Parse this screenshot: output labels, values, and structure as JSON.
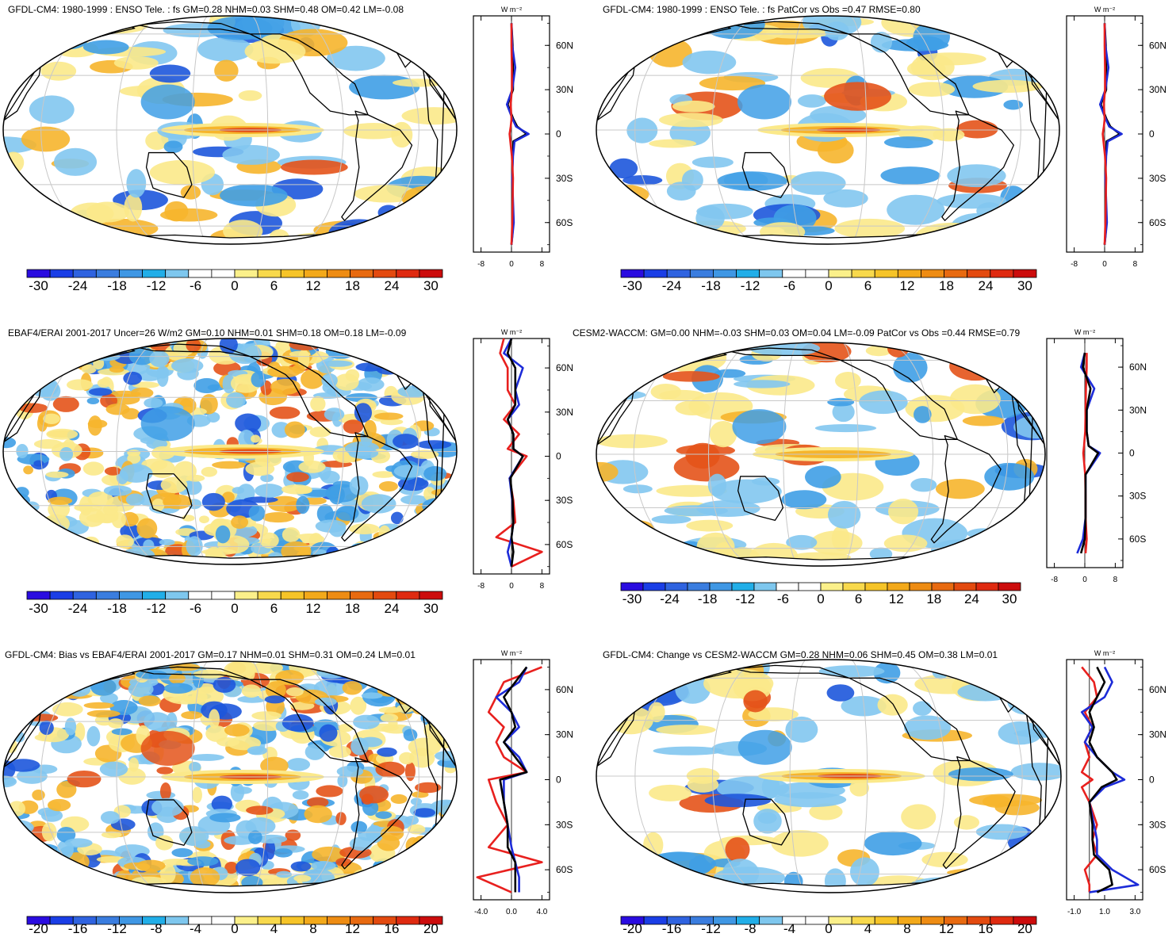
{
  "figure": {
    "panels": [
      {
        "id": "p1",
        "title": "GFDL-CM4: 1980-1999 : ENSO Tele. : fs GM=0.28 NHM=0.03 SHM=0.48 OM=0.42 LM=-0.08",
        "colorbar_labels": [
          "-30",
          "-24",
          "-18",
          "-12",
          "-6",
          "0",
          "6",
          "12",
          "18",
          "24",
          "30"
        ],
        "profile_ticks": [
          "-8",
          "0",
          "8"
        ],
        "lat_labels": [
          "60N",
          "30N",
          "0",
          "30S",
          "60S"
        ],
        "units": "W m⁻²"
      },
      {
        "id": "p2",
        "title": "GFDL-CM4: 1980-1999 : ENSO Tele. : fs PatCor vs Obs =0.47 RMSE=0.80",
        "colorbar_labels": [
          "-30",
          "-24",
          "-18",
          "-12",
          "-6",
          "0",
          "6",
          "12",
          "18",
          "24",
          "30"
        ],
        "profile_ticks": [
          "-8",
          "0",
          "8"
        ],
        "lat_labels": [
          "60N",
          "30N",
          "0",
          "30S",
          "60S"
        ],
        "units": "W m⁻²"
      },
      {
        "id": "p3",
        "title": "EBAF4/ERAI 2001-2017 Uncer=26 W/m2 GM=0.10 NHM=0.01 SHM=0.18 OM=0.18 LM=-0.09",
        "colorbar_labels": [
          "-30",
          "-24",
          "-18",
          "-12",
          "-6",
          "0",
          "6",
          "12",
          "18",
          "24",
          "30"
        ],
        "profile_ticks": [
          "-8",
          "0",
          "8"
        ],
        "lat_labels": [
          "60N",
          "30N",
          "0",
          "30S",
          "60S"
        ],
        "units": "W m⁻²"
      },
      {
        "id": "p4",
        "title": "CESM2-WACCM: GM=0.00 NHM=-0.03 SHM=0.03 OM=0.04 LM=-0.09 PatCor vs Obs =0.44 RMSE=0.79",
        "colorbar_labels": [
          "-30",
          "-24",
          "-18",
          "-12",
          "-6",
          "0",
          "6",
          "12",
          "18",
          "24",
          "30"
        ],
        "profile_ticks": [
          "-8",
          "0",
          "8"
        ],
        "lat_labels": [
          "60N",
          "30N",
          "0",
          "30S",
          "60S"
        ],
        "units": "W m⁻²"
      },
      {
        "id": "p5",
        "title": "GFDL-CM4: Bias vs EBAF4/ERAI 2001-2017 GM=0.17 NHM=0.01 SHM=0.31 OM=0.24 LM=0.01",
        "colorbar_labels": [
          "-20",
          "-16",
          "-12",
          "-8",
          "-4",
          "0",
          "4",
          "8",
          "12",
          "16",
          "20"
        ],
        "profile_ticks": [
          "-4.0",
          "0.0",
          "4.0"
        ],
        "lat_labels": [
          "60N",
          "30N",
          "0",
          "30S",
          "60S"
        ],
        "units": "W m⁻²"
      },
      {
        "id": "p6",
        "title": "GFDL-CM4: Change vs CESM2-WACCM GM=0.28 NHM=0.06 SHM=0.45 OM=0.38 LM=0.01",
        "colorbar_labels": [
          "-20",
          "-16",
          "-12",
          "-8",
          "-4",
          "0",
          "4",
          "8",
          "12",
          "16",
          "20"
        ],
        "profile_ticks": [
          "-1.0",
          "1.0",
          "3.0"
        ],
        "lat_labels": [
          "60N",
          "30N",
          "0",
          "30S",
          "60S"
        ],
        "units": "W m⁻²"
      }
    ]
  },
  "colors": {
    "colorbar": [
      "#2a0ce0",
      "#1a3ee6",
      "#2f63e0",
      "#3a7ddf",
      "#3f97e4",
      "#21aee8",
      "#7ec7ee",
      "#ffffff",
      "#ffffff",
      "#fbf08a",
      "#f8d94c",
      "#f6c428",
      "#f3a91a",
      "#ee8c13",
      "#e86a10",
      "#e34a0f",
      "#df2a10",
      "#cc0c0c"
    ],
    "neg_light": "#82c7ef",
    "neg_mid": "#3f9fe6",
    "neg_dark": "#1d56dc",
    "pos_light": "#fbe98a",
    "pos_mid": "#f6b52c",
    "pos_dark": "#e4531a",
    "profile_red": "#e8201e",
    "profile_blue": "#1c2bd8",
    "profile_black": "#000000"
  },
  "chart_data": [
    {
      "type": "heatmap",
      "panel": "p1",
      "title": "GFDL-CM4: 1980-1999 : ENSO Tele. : fs GM=0.28 NHM=0.03 SHM=0.48 OM=0.42 LM=-0.08",
      "colorbar": {
        "levels": [
          -30,
          -24,
          -18,
          -12,
          -6,
          0,
          6,
          12,
          18,
          24,
          30
        ]
      },
      "zonal_profile": {
        "xlim": [
          -10,
          10
        ],
        "x_ticks": [
          -8,
          0,
          8
        ],
        "ylim": [
          -80,
          80
        ],
        "lat": [
          -75,
          -60,
          -45,
          -30,
          -15,
          -5,
          0,
          5,
          10,
          20,
          30,
          45,
          60,
          75
        ],
        "series": [
          {
            "name": "black",
            "values": [
              0,
              0.5,
              0.3,
              0.2,
              0.3,
              0.5,
              4,
              1.5,
              0.5,
              -1,
              0.4,
              0.4,
              0.3,
              0
            ]
          },
          {
            "name": "blue",
            "values": [
              0,
              0.6,
              0.4,
              0.2,
              0.4,
              0.8,
              4.5,
              1.2,
              0.3,
              -1.2,
              0.2,
              1.0,
              0.2,
              0
            ]
          },
          {
            "name": "red",
            "values": [
              0,
              0.2,
              0.3,
              0.4,
              0.1,
              -0.3,
              -0.5,
              -0.2,
              0.0,
              -0.2,
              0.1,
              0.1,
              0.0,
              0
            ]
          }
        ]
      }
    },
    {
      "type": "heatmap",
      "panel": "p2",
      "title": "GFDL-CM4: 1980-1999 : ENSO Tele. : fs PatCor vs Obs =0.47 RMSE=0.80",
      "colorbar": {
        "levels": [
          -30,
          -24,
          -18,
          -12,
          -6,
          0,
          6,
          12,
          18,
          24,
          30
        ]
      },
      "zonal_profile": {
        "xlim": [
          -10,
          10
        ],
        "x_ticks": [
          -8,
          0,
          8
        ],
        "ylim": [
          -80,
          80
        ],
        "lat": [
          -75,
          -60,
          -45,
          -30,
          -15,
          -5,
          0,
          5,
          10,
          20,
          30,
          45,
          60,
          75
        ],
        "series": [
          {
            "name": "black",
            "values": [
              0,
              0.5,
              0.3,
              0.2,
              0.3,
              0.5,
              4,
              1.5,
              0.5,
              -1,
              0.4,
              0.4,
              0.3,
              0
            ]
          },
          {
            "name": "blue",
            "values": [
              0,
              0.6,
              0.4,
              0.2,
              0.4,
              0.8,
              4.5,
              1.2,
              0.3,
              -1.2,
              0.2,
              1.0,
              0.2,
              0
            ]
          },
          {
            "name": "red",
            "values": [
              0,
              0.2,
              0.3,
              0.4,
              0.1,
              -0.3,
              -0.5,
              -0.2,
              0.0,
              -0.2,
              0.1,
              0.1,
              0.0,
              0
            ]
          }
        ]
      }
    },
    {
      "type": "heatmap",
      "panel": "p3",
      "title": "EBAF4/ERAI 2001-2017 Uncer=26 W/m2 GM=0.10 NHM=0.01 SHM=0.18 OM=0.18 LM=-0.09",
      "colorbar": {
        "levels": [
          -30,
          -24,
          -18,
          -12,
          -6,
          0,
          6,
          12,
          18,
          24,
          30
        ]
      },
      "zonal_profile": {
        "xlim": [
          -10,
          10
        ],
        "x_ticks": [
          -8,
          0,
          8
        ],
        "ylim": [
          -80,
          80
        ],
        "lat": [
          -75,
          -65,
          -55,
          -45,
          -30,
          -15,
          0,
          5,
          15,
          25,
          35,
          45,
          60,
          70,
          80
        ],
        "series": [
          {
            "name": "red",
            "values": [
              0,
              8,
              -4,
              1,
              0.5,
              -0.5,
              4,
              -1,
              2,
              -2,
              1,
              -1,
              -1,
              -3,
              -2
            ]
          },
          {
            "name": "blue",
            "values": [
              0,
              -1,
              0,
              0.5,
              0.2,
              -0.5,
              3,
              0.5,
              0.5,
              -1,
              2,
              1,
              3,
              -2,
              0
            ]
          },
          {
            "name": "black",
            "values": [
              0,
              0.5,
              0,
              0.5,
              0.3,
              -0.3,
              3,
              0.5,
              0.5,
              -1,
              1,
              1,
              1,
              -1,
              0
            ]
          }
        ]
      }
    },
    {
      "type": "heatmap",
      "panel": "p4",
      "title": "CESM2-WACCM: GM=0.00 NHM=-0.03 SHM=0.03 OM=0.04 LM=-0.09 PatCor vs Obs =0.44 RMSE=0.79",
      "colorbar": {
        "levels": [
          -30,
          -24,
          -18,
          -12,
          -6,
          0,
          6,
          12,
          18,
          24,
          30
        ]
      },
      "zonal_profile": {
        "xlim": [
          -10,
          10
        ],
        "x_ticks": [
          -8,
          0,
          8
        ],
        "ylim": [
          -80,
          80
        ],
        "lat": [
          -70,
          -60,
          -45,
          -30,
          -15,
          0,
          5,
          15,
          30,
          45,
          60,
          70
        ],
        "series": [
          {
            "name": "blue",
            "values": [
              -2,
              -0.5,
              0.2,
              0.2,
              0.2,
              4,
              1,
              0.5,
              0.5,
              2.5,
              -1,
              0
            ]
          },
          {
            "name": "red",
            "values": [
              0.2,
              0.5,
              0.2,
              0.2,
              0.1,
              -0.4,
              -0.2,
              0.1,
              0.2,
              0.3,
              0.5,
              0.5
            ]
          },
          {
            "name": "black",
            "values": [
              -1,
              0,
              0.2,
              0.2,
              0.2,
              3.5,
              1,
              0.5,
              0.5,
              1.5,
              -0.5,
              0
            ]
          }
        ]
      }
    },
    {
      "type": "heatmap",
      "panel": "p5",
      "title": "GFDL-CM4: Bias vs EBAF4/ERAI 2001-2017 GM=0.17 NHM=0.01 SHM=0.31 OM=0.24 LM=0.01",
      "colorbar": {
        "levels": [
          -20,
          -16,
          -12,
          -8,
          -4,
          0,
          4,
          8,
          12,
          16,
          20
        ]
      },
      "zonal_profile": {
        "xlim": [
          -5,
          5
        ],
        "x_ticks": [
          -4.0,
          0.0,
          4.0
        ],
        "ylim": [
          -80,
          80
        ],
        "lat": [
          -75,
          -65,
          -55,
          -45,
          -30,
          -15,
          0,
          5,
          15,
          25,
          35,
          45,
          55,
          65,
          75
        ],
        "series": [
          {
            "name": "red",
            "values": [
              0,
              -4.5,
              4,
              -3,
              -0.5,
              -2,
              -3,
              2,
              -1,
              -2,
              -1,
              -3,
              -2,
              -1,
              4
            ]
          },
          {
            "name": "blue",
            "values": [
              1,
              1,
              0.5,
              0,
              -0.5,
              -1,
              -1,
              2,
              1,
              -1,
              1,
              0,
              -2,
              1,
              2
            ]
          },
          {
            "name": "black",
            "values": [
              0.5,
              0.5,
              0.5,
              -0.5,
              -0.5,
              -1,
              -1.5,
              2,
              0.5,
              -1,
              0.5,
              0,
              -1,
              0.5,
              2
            ]
          }
        ]
      }
    },
    {
      "type": "heatmap",
      "panel": "p6",
      "title": "GFDL-CM4: Change vs CESM2-WACCM GM=0.28 NHM=0.06 SHM=0.45 OM=0.38 LM=0.01",
      "colorbar": {
        "levels": [
          -20,
          -16,
          -12,
          -8,
          -4,
          0,
          4,
          8,
          12,
          16,
          20
        ]
      },
      "zonal_profile": {
        "xlim": [
          -1.5,
          3.5
        ],
        "x_ticks": [
          -1.0,
          1.0,
          3.0
        ],
        "ylim": [
          -80,
          80
        ],
        "lat": [
          -75,
          -70,
          -60,
          -50,
          -40,
          -30,
          -15,
          -5,
          0,
          5,
          15,
          25,
          35,
          45,
          55,
          65,
          75
        ],
        "series": [
          {
            "name": "red",
            "values": [
              0,
              0,
              -0.3,
              0.5,
              0.2,
              0.5,
              0,
              -0.5,
              0.2,
              -0.5,
              0,
              -0.3,
              0.2,
              -0.3,
              0.5,
              0.3,
              -0.5
            ]
          },
          {
            "name": "blue",
            "values": [
              0,
              3.2,
              1.5,
              0.5,
              0.5,
              0.3,
              0,
              1,
              2.3,
              1.5,
              0.5,
              -0.3,
              0.2,
              -0.5,
              1,
              1.5,
              1
            ]
          },
          {
            "name": "black",
            "values": [
              0.5,
              1.5,
              1.3,
              0.3,
              0.2,
              0.2,
              0,
              0.8,
              1.8,
              1.5,
              0.5,
              0,
              0.3,
              0,
              0.5,
              1,
              0.5
            ]
          }
        ]
      }
    }
  ]
}
